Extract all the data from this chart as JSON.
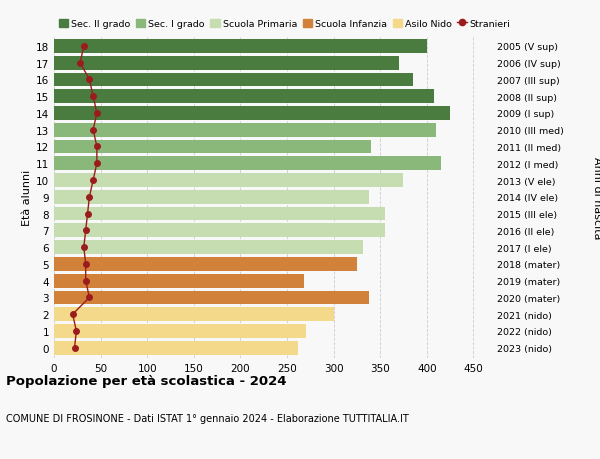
{
  "ages": [
    18,
    17,
    16,
    15,
    14,
    13,
    12,
    11,
    10,
    9,
    8,
    7,
    6,
    5,
    4,
    3,
    2,
    1,
    0
  ],
  "anni_nascita": [
    "2005 (V sup)",
    "2006 (IV sup)",
    "2007 (III sup)",
    "2008 (II sup)",
    "2009 (I sup)",
    "2010 (III med)",
    "2011 (II med)",
    "2012 (I med)",
    "2013 (V ele)",
    "2014 (IV ele)",
    "2015 (III ele)",
    "2016 (II ele)",
    "2017 (I ele)",
    "2018 (mater)",
    "2019 (mater)",
    "2020 (mater)",
    "2021 (nido)",
    "2022 (nido)",
    "2023 (nido)"
  ],
  "bar_values": [
    400,
    370,
    385,
    408,
    425,
    410,
    340,
    415,
    375,
    338,
    355,
    355,
    332,
    325,
    268,
    338,
    300,
    270,
    262
  ],
  "stranieri": [
    32,
    28,
    38,
    42,
    46,
    42,
    46,
    46,
    42,
    38,
    36,
    34,
    32,
    34,
    34,
    38,
    20,
    24,
    22
  ],
  "bar_colors": [
    "#4a7c3f",
    "#4a7c3f",
    "#4a7c3f",
    "#4a7c3f",
    "#4a7c3f",
    "#8ab87a",
    "#8ab87a",
    "#8ab87a",
    "#c5ddb0",
    "#c5ddb0",
    "#c5ddb0",
    "#c5ddb0",
    "#c5ddb0",
    "#d2813a",
    "#d2813a",
    "#d2813a",
    "#f5d98b",
    "#f5d98b",
    "#f5d98b"
  ],
  "stranieri_color": "#9b1c1c",
  "stranieri_line_color": "#9b1c1c",
  "xlim": [
    0,
    470
  ],
  "xticks": [
    0,
    50,
    100,
    150,
    200,
    250,
    300,
    350,
    400,
    450
  ],
  "title": "Popolazione per età scolastica - 2024",
  "subtitle": "COMUNE DI FROSINONE - Dati ISTAT 1° gennaio 2024 - Elaborazione TUTTITALIA.IT",
  "ylabel_left": "Età alunni",
  "ylabel_right": "Anni di nascita",
  "legend_labels": [
    "Sec. II grado",
    "Sec. I grado",
    "Scuola Primaria",
    "Scuola Infanzia",
    "Asilo Nido",
    "Stranieri"
  ],
  "legend_colors": [
    "#4a7c3f",
    "#8ab87a",
    "#c5ddb0",
    "#d2813a",
    "#f5d98b",
    "#9b1c1c"
  ],
  "bg_color": "#f8f8f8",
  "bar_height": 0.82
}
